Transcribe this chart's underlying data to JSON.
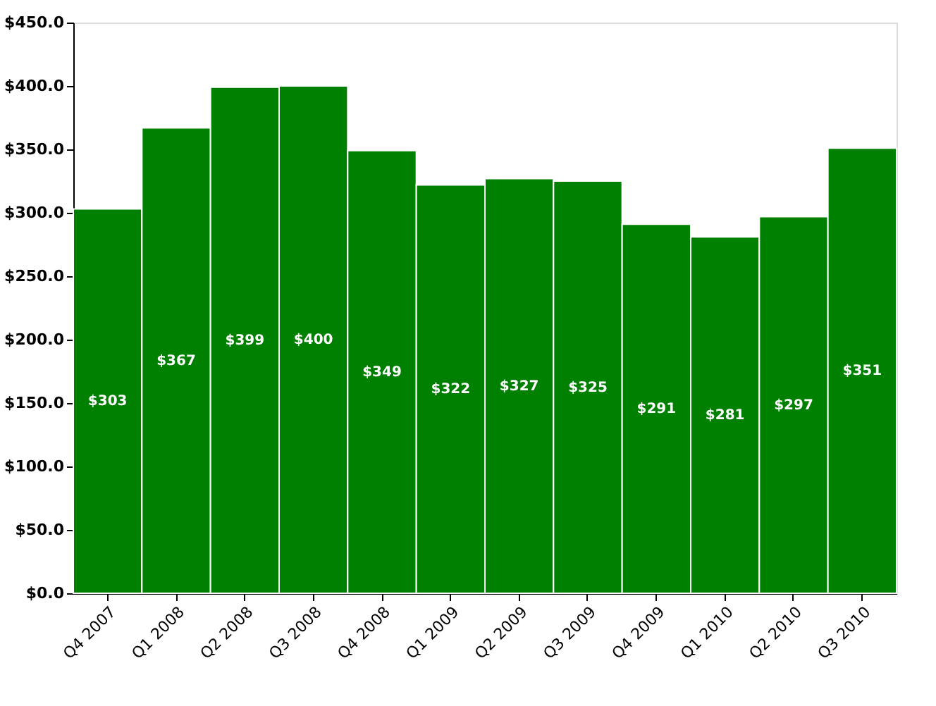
{
  "chart_data": {
    "type": "bar",
    "categories": [
      "Q4 2007",
      "Q1 2008",
      "Q2 2008",
      "Q3 2008",
      "Q4 2008",
      "Q1 2009",
      "Q2 2009",
      "Q3 2009",
      "Q4 2009",
      "Q1 2010",
      "Q2 2010",
      "Q3 2010"
    ],
    "values": [
      303,
      367,
      399,
      400,
      349,
      322,
      327,
      325,
      291,
      281,
      297,
      351
    ],
    "value_labels": [
      "$303",
      "$367",
      "$399",
      "$400",
      "$349",
      "$322",
      "$327",
      "$325",
      "$291",
      "$281",
      "$297",
      "$351"
    ],
    "color": "#008000",
    "ylim": [
      0,
      450
    ],
    "yticks": [
      {
        "value": 0,
        "label": "$0.0"
      },
      {
        "value": 50,
        "label": "$50.0"
      },
      {
        "value": 100,
        "label": "$100.0"
      },
      {
        "value": 150,
        "label": "$150.0"
      },
      {
        "value": 200,
        "label": "$200.0"
      },
      {
        "value": 250,
        "label": "$250.0"
      },
      {
        "value": 300,
        "label": "$300.0"
      },
      {
        "value": 350,
        "label": "$350.0"
      },
      {
        "value": 400,
        "label": "$400.0"
      },
      {
        "value": 450,
        "label": "$450.0"
      }
    ],
    "grid": false
  }
}
